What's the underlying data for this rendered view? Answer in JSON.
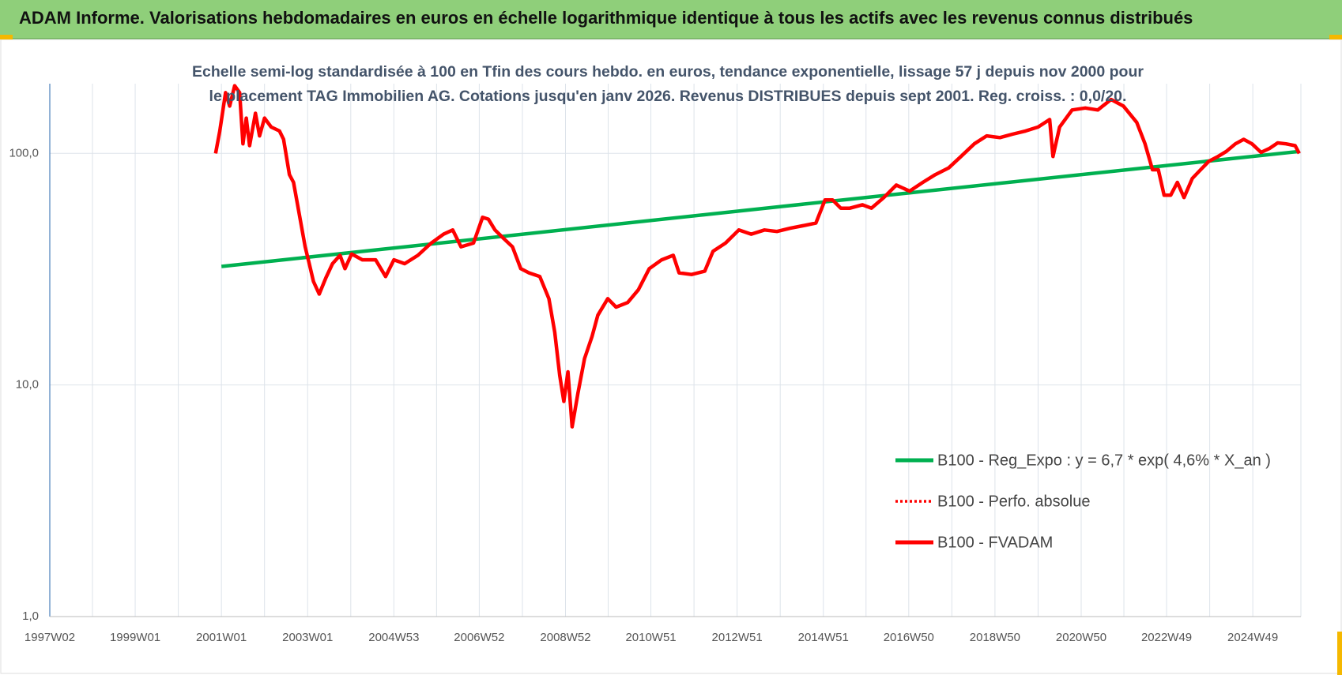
{
  "chart_data": {
    "type": "line",
    "title": "ADAM Informe. Valorisations hebdomadaires en euros en échelle logarithmique identique à tous les actifs avec les revenus connus distribués",
    "subtitle": "Echelle semi-log standardisée à 100 en Tfin des cours hebdo. en euros, tendance exponentielle, lissage 57 j depuis nov 2000 pour le placement TAG Immobilien AG. Cotations jusqu'en janv 2026. Revenus DISTRIBUES depuis sept 2001. Reg. croiss. : 0,0/20.",
    "log_scale_y": true,
    "grid": true,
    "legend_position": "right",
    "xlim": [
      "1997W02",
      "2026W03"
    ],
    "xticks": [
      "1997W02",
      null,
      "1999W01",
      null,
      "2001W01",
      null,
      "2003W01",
      null,
      "2004W53",
      null,
      "2006W52",
      null,
      "2008W52",
      null,
      "2010W51",
      null,
      "2012W51",
      null,
      "2014W51",
      null,
      "2016W50",
      null,
      "2018W50",
      null,
      "2020W50",
      null,
      "2022W49",
      null,
      "2024W49"
    ],
    "ylim": [
      1,
      200
    ],
    "yticks": [
      {
        "value": 1,
        "label": "1,0"
      },
      {
        "value": 10,
        "label": "10,0"
      },
      {
        "value": 100,
        "label": "100,0"
      }
    ],
    "x": [
      "2000W46",
      "2000W51",
      "2001W06",
      "2001W11",
      "2001W17",
      "2001W23",
      "2001W27",
      "2001W31",
      "2001W35",
      "2001W42",
      "2001W47",
      "2002W01",
      "2002W09",
      "2002W19",
      "2002W24",
      "2002W31",
      "2002W36",
      "2002W44",
      "2002W50",
      "2003W03",
      "2003W08",
      "2003W15",
      "2003W23",
      "2003W31",
      "2003W40",
      "2003W46",
      "2004W02",
      "2004W15",
      "2004W31",
      "2004W43",
      "2005W01",
      "2005W14",
      "2005W30",
      "2005W46",
      "2006W09",
      "2006W20",
      "2006W30",
      "2006W45",
      "2007W04",
      "2007W11",
      "2007W19",
      "2007W30",
      "2007W40",
      "2007W50",
      "2008W08",
      "2008W21",
      "2008W32",
      "2008W39",
      "2008W45",
      "2008W50",
      "2009W03",
      "2009W08",
      "2009W15",
      "2009W23",
      "2009W32",
      "2009W39",
      "2009W51",
      "2010W09",
      "2010W23",
      "2010W36",
      "2010W49",
      "2011W12",
      "2011W26",
      "2011W33",
      "2011W48",
      "2012W12",
      "2012W22",
      "2012W37",
      "2013W01",
      "2013W16",
      "2013W32",
      "2013W47",
      "2014W11",
      "2014W26",
      "2014W42",
      "2015W01",
      "2015W10",
      "2015W20",
      "2015W31",
      "2015W46",
      "2016W05",
      "2016W20",
      "2016W35",
      "2016W51",
      "2017W15",
      "2017W30",
      "2017W46",
      "2018W09",
      "2018W25",
      "2018W40",
      "2019W04",
      "2019W19",
      "2019W35",
      "2019W50",
      "2020W12",
      "2020W16",
      "2020W24",
      "2020W39",
      "2021W03",
      "2021W18",
      "2021W34",
      "2021W49",
      "2022W13",
      "2022W23",
      "2022W32",
      "2022W39",
      "2022W46",
      "2023W02",
      "2023W10",
      "2023W18",
      "2023W28",
      "2023W38",
      "2023W48",
      "2024W07",
      "2024W17",
      "2024W28",
      "2024W38",
      "2024W48",
      "2025W07",
      "2025W17",
      "2025W27",
      "2025W37",
      "2025W48",
      "2026W01"
    ],
    "series": [
      {
        "name": "B100 - Reg_Expo : y = 6,7 * exp( 4,6% *  X_an )",
        "color": "#00b050",
        "line_style": "solid",
        "x": [
          "2001W01",
          "2014W01",
          "2026W01"
        ],
        "values": [
          32.5,
          59,
          102
        ]
      },
      {
        "name": "B100 - Perfo. absolue",
        "color": "#ff0000",
        "line_style": "dotted",
        "values": [
          100,
          125,
          183,
          160,
          196,
          183,
          110,
          142,
          108,
          149,
          119,
          142,
          130,
          125,
          115,
          81,
          75,
          52,
          39.5,
          33.4,
          28,
          24.7,
          29,
          33.4,
          36.3,
          31.8,
          36.8,
          34.7,
          34.7,
          29.4,
          34.7,
          33.4,
          36.3,
          41,
          44.8,
          46.7,
          39.5,
          41,
          53,
          52,
          46.7,
          42.7,
          39.5,
          31.8,
          30.5,
          29.4,
          23.6,
          16.9,
          11,
          8.5,
          11.4,
          6.6,
          9.2,
          13,
          16.2,
          20,
          23.6,
          21.7,
          22.7,
          25.8,
          31.8,
          34.7,
          36.3,
          30.5,
          30,
          31,
          37.8,
          41,
          46.7,
          44.8,
          46.7,
          46,
          47.5,
          48.7,
          50,
          63,
          63,
          58,
          58,
          60,
          58,
          64.5,
          73,
          68.7,
          75,
          81,
          86.5,
          97,
          110,
          119,
          117,
          121,
          125,
          130,
          140,
          97,
          130,
          154,
          157,
          154,
          171,
          160,
          136,
          110,
          85,
          85,
          66,
          66,
          75,
          64.5,
          78,
          85,
          92.5,
          97,
          102,
          110,
          115,
          110,
          101,
          105,
          111,
          110,
          108,
          100
        ]
      },
      {
        "name": "B100 - FVADAM",
        "color": "#ff0000",
        "line_style": "solid",
        "values": [
          100,
          125,
          183,
          160,
          196,
          183,
          110,
          142,
          108,
          149,
          119,
          142,
          130,
          125,
          115,
          81,
          75,
          52,
          39.5,
          33.4,
          28,
          24.7,
          29,
          33.4,
          36.3,
          31.8,
          36.8,
          34.7,
          34.7,
          29.4,
          34.7,
          33.4,
          36.3,
          41,
          44.8,
          46.7,
          39.5,
          41,
          53,
          52,
          46.7,
          42.7,
          39.5,
          31.8,
          30.5,
          29.4,
          23.6,
          16.9,
          11,
          8.5,
          11.4,
          6.6,
          9.2,
          13,
          16.2,
          20,
          23.6,
          21.7,
          22.7,
          25.8,
          31.8,
          34.7,
          36.3,
          30.5,
          30,
          31,
          37.8,
          41,
          46.7,
          44.8,
          46.7,
          46,
          47.5,
          48.7,
          50,
          63,
          63,
          58,
          58,
          60,
          58,
          64.5,
          73,
          68.7,
          75,
          81,
          86.5,
          97,
          110,
          119,
          117,
          121,
          125,
          130,
          140,
          97,
          130,
          154,
          157,
          154,
          171,
          160,
          136,
          110,
          85,
          85,
          66,
          66,
          75,
          64.5,
          78,
          85,
          92.5,
          97,
          102,
          110,
          115,
          110,
          101,
          105,
          111,
          110,
          108,
          100
        ]
      }
    ]
  }
}
